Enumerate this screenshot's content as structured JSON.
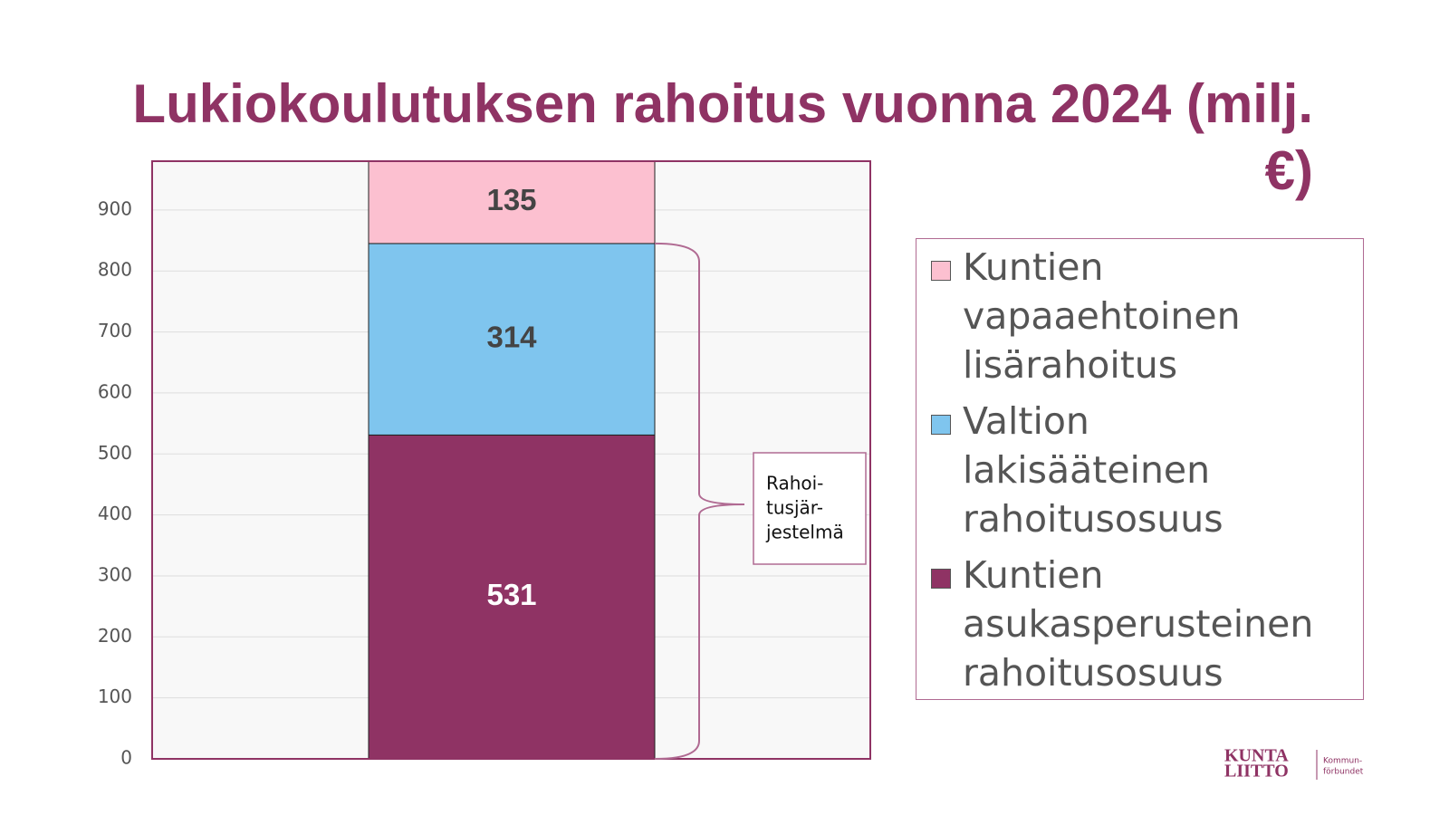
{
  "chart_data": {
    "type": "stacked-bar",
    "title": "Lukiokoulutuksen rahoitus vuonna 2024 (milj. €)",
    "categories": [
      null
    ],
    "series": [
      {
        "name": "Kuntien asukasperusteinen rahoitusosuus",
        "color": "#8f3364",
        "values": [
          531
        ],
        "label_color": "#ffffff"
      },
      {
        "name": "Valtion lakisääteinen rahoitusosuus",
        "color": "#7fc5ee",
        "values": [
          314
        ],
        "label_color": "#444444"
      },
      {
        "name": "Kuntien vapaaehtoinen lisärahoitus",
        "color": "#fcc0d0",
        "values": [
          135
        ],
        "label_color": "#444444"
      }
    ],
    "ylim": [
      0,
      980
    ],
    "yticks": [
      0,
      100,
      200,
      300,
      400,
      500,
      600,
      700,
      800,
      900
    ],
    "grid": true,
    "annotation": [
      "Rahoi-",
      "tusjär-",
      "jestelmä"
    ],
    "logo": [
      "KUNTA",
      "LIITTO",
      "Kommun-",
      "förbundet"
    ]
  }
}
